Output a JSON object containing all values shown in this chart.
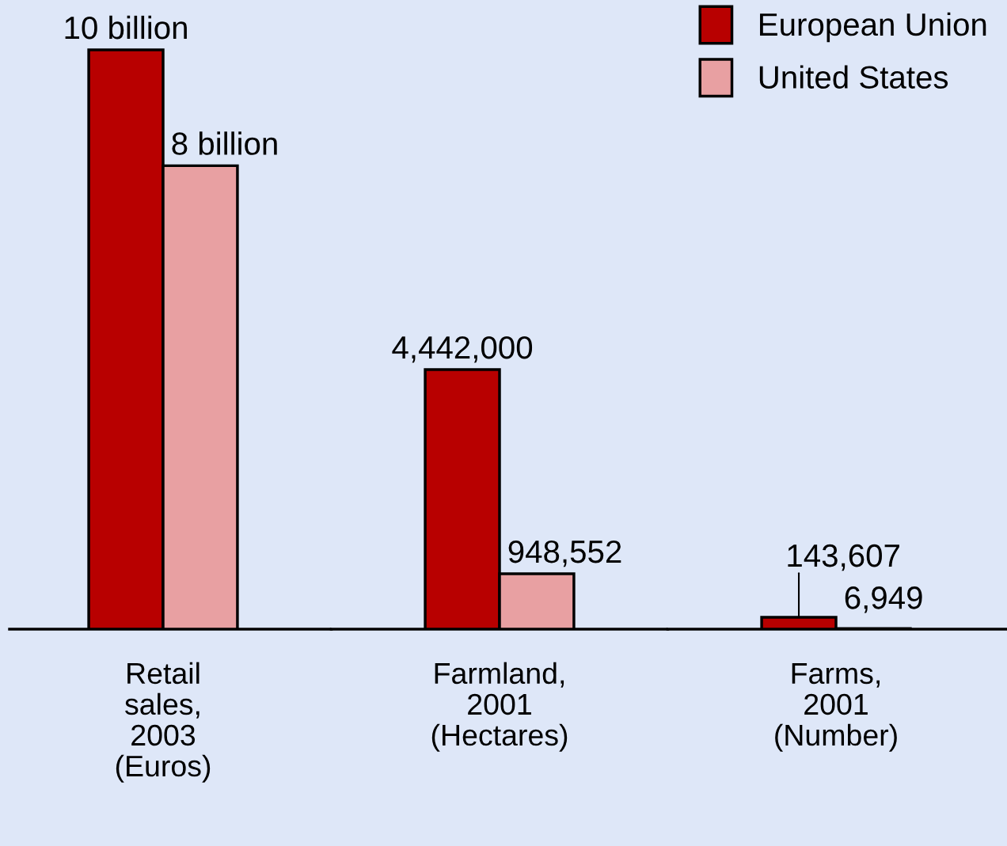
{
  "chart_data": [
    {
      "type": "bar",
      "categories": [
        "Retail\nsales,\n2003\n(Euros)"
      ],
      "ylim": [
        0,
        10860000000
      ],
      "tick_labels": "x",
      "series": [
        {
          "color": "#b80000",
          "values": [
            10000000000
          ],
          "value_labels": [
            "10 billion"
          ]
        },
        {
          "color": "#e8a0a2",
          "values": [
            8000000000
          ],
          "value_labels": [
            "8 billion"
          ]
        }
      ]
    },
    {
      "type": "bar",
      "categories": [
        "Farmland,\n2001\n(Hectares)"
      ],
      "ylim": [
        0,
        10766000
      ],
      "tick_labels": "x",
      "series": [
        {
          "color": "#b80000",
          "values": [
            4442000
          ],
          "value_labels": [
            "4,442,000"
          ]
        },
        {
          "color": "#e8a0a2",
          "values": [
            948552
          ],
          "value_labels": [
            "948,552"
          ]
        }
      ]
    },
    {
      "type": "bar",
      "categories": [
        "Farms,\n2001\n(Number)"
      ],
      "ylim": [
        0,
        7611000
      ],
      "tick_labels": "x",
      "series": [
        {
          "name": "European Union",
          "color": "#b80000",
          "values": [
            143607
          ],
          "value_labels": [
            "143,607"
          ]
        },
        {
          "name": "United States",
          "color": "#e8a0a2",
          "values": [
            6949
          ],
          "value_labels": [
            "6,949"
          ]
        }
      ],
      "legend": "top right"
    }
  ]
}
